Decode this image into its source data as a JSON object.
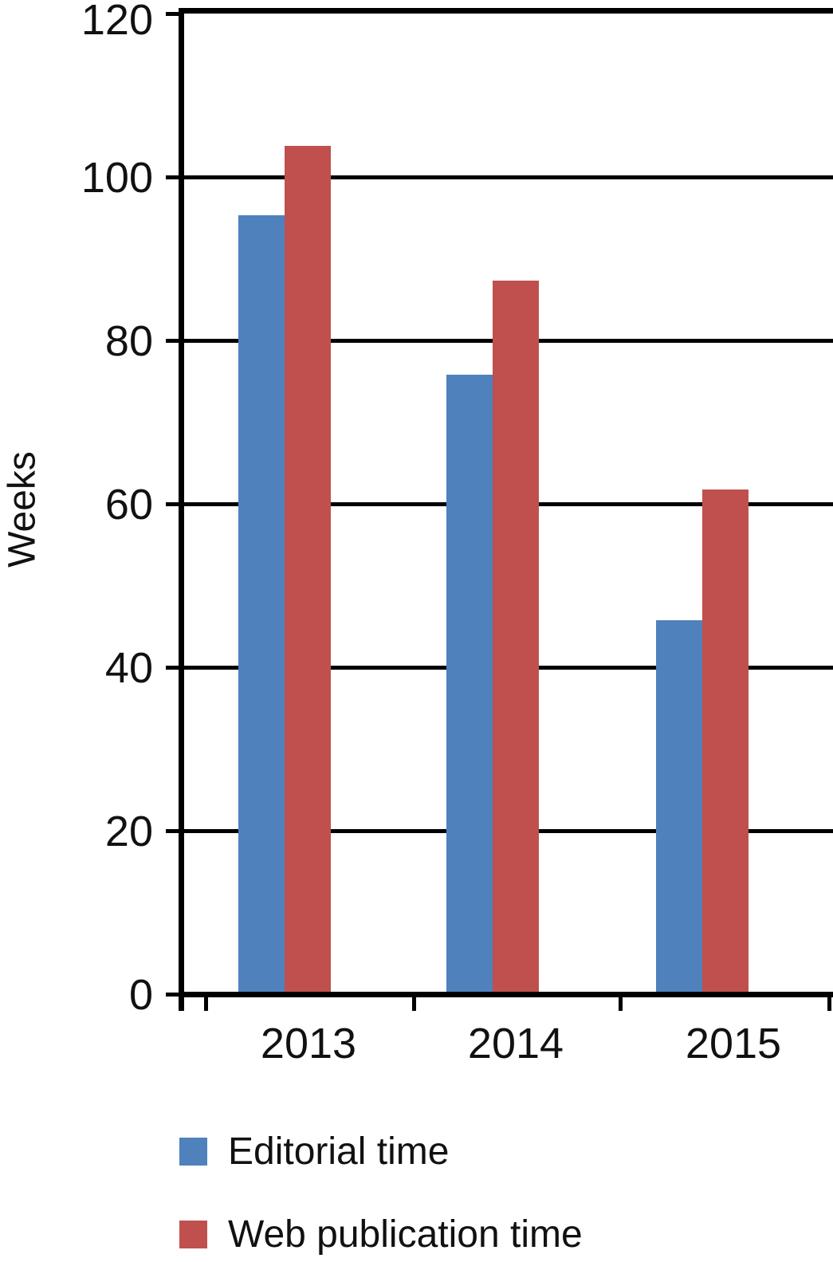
{
  "chart_data": {
    "type": "bar",
    "title": "",
    "categories": [
      "2013",
      "2014",
      "2015"
    ],
    "series": [
      {
        "name": "Editorial time",
        "color": "#4F81BD",
        "values": [
          95,
          75.5,
          45.5
        ]
      },
      {
        "name": "Web publication time",
        "color": "#C0504D",
        "values": [
          103.5,
          87,
          61.5
        ]
      }
    ],
    "xlabel": "",
    "ylabel": "Weeks",
    "ylim": [
      0,
      120
    ],
    "yticks": [
      0,
      20,
      40,
      60,
      80,
      100,
      120
    ],
    "grid": true,
    "grid_color": "#000000",
    "axis_color": "#000000",
    "background": "#FFFFFF",
    "legend_position": "bottom-left"
  },
  "legend": {
    "items": [
      {
        "label": "Editorial time",
        "color": "#4F81BD"
      },
      {
        "label": "Web publication time",
        "color": "#C0504D"
      }
    ]
  }
}
